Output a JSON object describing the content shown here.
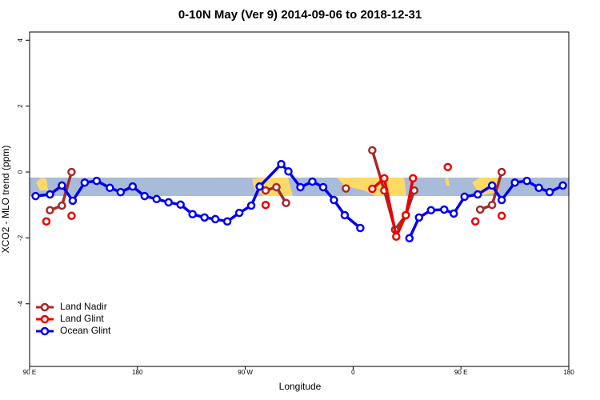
{
  "chart_data": {
    "type": "line",
    "title": "0-10N May (Ver 9)   2014-09-06 to 2018-12-31",
    "x_label": "Longitude",
    "y_label": "XCO2 - MLO trend (ppm)",
    "xlim": [
      90,
      540
    ],
    "xticks": [
      {
        "value": 90,
        "label": "90 E"
      },
      {
        "value": 180,
        "label": "180"
      },
      {
        "value": 270,
        "label": "90 W"
      },
      {
        "value": 360,
        "label": "0"
      },
      {
        "value": 450,
        "label": "90 E"
      },
      {
        "value": 540,
        "label": "180"
      }
    ],
    "ylim": [
      -5.9,
      4.25
    ],
    "yticks": [
      -4,
      -2,
      0,
      2,
      4
    ],
    "legend": "bottom-left",
    "series": [
      {
        "name": "Land Nadir",
        "color": "#a52a2a",
        "x": [
          107,
          117,
          125,
          null,
          287,
          296,
          304,
          null,
          354,
          null,
          376,
          386,
          395,
          404,
          411,
          null,
          466,
          476,
          484
        ],
        "values": [
          -1.16,
          -1.02,
          0.0,
          null,
          -0.56,
          -0.46,
          -0.94,
          null,
          -0.5,
          null,
          0.66,
          -0.56,
          -1.75,
          -1.31,
          -0.56,
          null,
          -1.14,
          -1.0,
          0.0
        ]
      },
      {
        "name": "Land Glint",
        "color": "#ee0000",
        "x": [
          104,
          null,
          125,
          null,
          287,
          null,
          376,
          386,
          396,
          404,
          410,
          null,
          439,
          null,
          462,
          null,
          484
        ],
        "values": [
          -1.5,
          null,
          -1.33,
          null,
          -1.0,
          null,
          -0.51,
          -0.19,
          -1.96,
          -1.31,
          -0.19,
          null,
          0.15,
          null,
          -1.5,
          null,
          -1.33
        ]
      },
      {
        "name": "Ocean Glint",
        "color": "#0000ee",
        "x": [
          95,
          107,
          117,
          126,
          136,
          146,
          157,
          166,
          176,
          186,
          196,
          206,
          216,
          226,
          236,
          245,
          255,
          265,
          275,
          282,
          300,
          306,
          316,
          326,
          335,
          344,
          353,
          366,
          null,
          407,
          415,
          425,
          436,
          444,
          453,
          464,
          476,
          484,
          495,
          505,
          515,
          524,
          535
        ],
        "values": [
          -0.73,
          -0.68,
          -0.41,
          -0.87,
          -0.32,
          -0.27,
          -0.48,
          -0.61,
          -0.44,
          -0.73,
          -0.82,
          -0.92,
          -0.99,
          -1.28,
          -1.38,
          -1.43,
          -1.5,
          -1.24,
          -1.02,
          -0.44,
          0.24,
          0.02,
          -0.46,
          -0.29,
          -0.46,
          -0.85,
          -1.31,
          -1.7,
          null,
          -2.01,
          -1.38,
          -1.16,
          -1.14,
          -1.26,
          -0.75,
          -0.68,
          -0.41,
          -0.85,
          -0.32,
          -0.27,
          -0.48,
          -0.61,
          -0.41
        ]
      }
    ]
  }
}
